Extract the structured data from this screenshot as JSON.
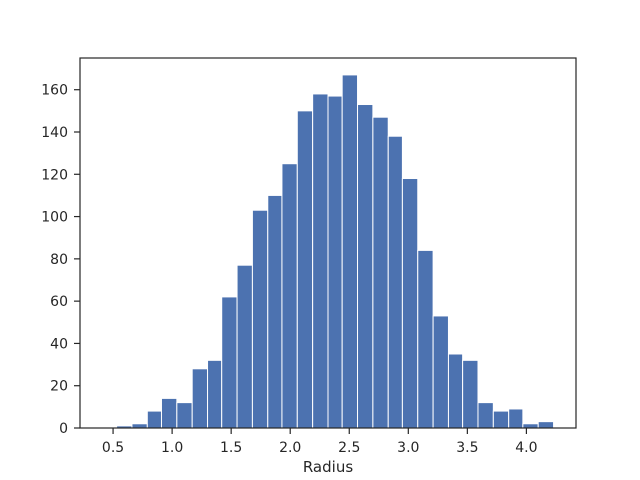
{
  "chart_data": {
    "type": "bar",
    "subtype": "histogram",
    "title": "",
    "xlabel": "Radius",
    "ylabel": "",
    "xlim": [
      0.22,
      4.42
    ],
    "ylim": [
      0,
      175
    ],
    "xticks": [
      0.5,
      1.0,
      1.5,
      2.0,
      2.5,
      3.0,
      3.5,
      4.0
    ],
    "xtick_labels": [
      "0.5",
      "1.0",
      "1.5",
      "2.0",
      "2.5",
      "3.0",
      "3.5",
      "4.0"
    ],
    "yticks": [
      0,
      20,
      40,
      60,
      80,
      100,
      120,
      140,
      160
    ],
    "ytick_labels": [
      "0",
      "20",
      "40",
      "60",
      "80",
      "100",
      "120",
      "140",
      "160"
    ],
    "grid": false,
    "bar_color": "#4c72b0",
    "bins": [
      {
        "x0": 0.4,
        "x1": 0.53,
        "count": 0
      },
      {
        "x0": 0.53,
        "x1": 0.66,
        "count": 1
      },
      {
        "x0": 0.66,
        "x1": 0.79,
        "count": 2
      },
      {
        "x0": 0.79,
        "x1": 0.91,
        "count": 8
      },
      {
        "x0": 0.91,
        "x1": 1.04,
        "count": 14
      },
      {
        "x0": 1.04,
        "x1": 1.17,
        "count": 12
      },
      {
        "x0": 1.17,
        "x1": 1.3,
        "count": 28
      },
      {
        "x0": 1.3,
        "x1": 1.42,
        "count": 32
      },
      {
        "x0": 1.42,
        "x1": 1.55,
        "count": 62
      },
      {
        "x0": 1.55,
        "x1": 1.68,
        "count": 77
      },
      {
        "x0": 1.68,
        "x1": 1.81,
        "count": 103
      },
      {
        "x0": 1.81,
        "x1": 1.93,
        "count": 110
      },
      {
        "x0": 1.93,
        "x1": 2.06,
        "count": 125
      },
      {
        "x0": 2.06,
        "x1": 2.19,
        "count": 150
      },
      {
        "x0": 2.19,
        "x1": 2.32,
        "count": 158
      },
      {
        "x0": 2.32,
        "x1": 2.44,
        "count": 157
      },
      {
        "x0": 2.44,
        "x1": 2.57,
        "count": 167
      },
      {
        "x0": 2.57,
        "x1": 2.7,
        "count": 153
      },
      {
        "x0": 2.7,
        "x1": 2.83,
        "count": 147
      },
      {
        "x0": 2.83,
        "x1": 2.95,
        "count": 138
      },
      {
        "x0": 2.95,
        "x1": 3.08,
        "count": 118
      },
      {
        "x0": 3.08,
        "x1": 3.21,
        "count": 84
      },
      {
        "x0": 3.21,
        "x1": 3.34,
        "count": 53
      },
      {
        "x0": 3.34,
        "x1": 3.46,
        "count": 35
      },
      {
        "x0": 3.46,
        "x1": 3.59,
        "count": 32
      },
      {
        "x0": 3.59,
        "x1": 3.72,
        "count": 12
      },
      {
        "x0": 3.72,
        "x1": 3.85,
        "count": 8
      },
      {
        "x0": 3.85,
        "x1": 3.97,
        "count": 9
      },
      {
        "x0": 3.97,
        "x1": 4.1,
        "count": 2
      },
      {
        "x0": 4.1,
        "x1": 4.23,
        "count": 3
      }
    ]
  }
}
